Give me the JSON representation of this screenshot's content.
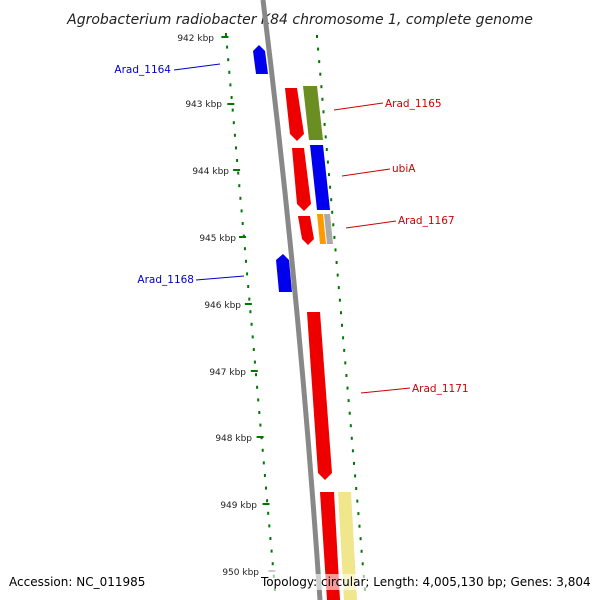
{
  "title": "Agrobacterium radiobacter K84 chromosome 1, complete genome",
  "footer": {
    "accession": "Accession: NC_011985",
    "summary": "Topology: circular; Length: 4,005,130 bp; Genes: 3,804"
  },
  "ruler": {
    "labels": [
      "942 kbp",
      "943 kbp",
      "944 kbp",
      "945 kbp",
      "946 kbp",
      "947 kbp",
      "948 kbp",
      "949 kbp",
      "950 kbp"
    ]
  },
  "gene_labels": [
    {
      "id": "arad-1164",
      "text": "Arad_1164",
      "color": "#0000cc"
    },
    {
      "id": "arad-1165",
      "text": "Arad_1165",
      "color": "#cc0000"
    },
    {
      "id": "ubia",
      "text": "ubiA",
      "color": "#cc0000"
    },
    {
      "id": "arad-1167",
      "text": "Arad_1167",
      "color": "#cc0000"
    },
    {
      "id": "arad-1168",
      "text": "Arad_1168",
      "color": "#0000cc"
    },
    {
      "id": "arad-1171",
      "text": "Arad_1171",
      "color": "#cc0000"
    }
  ],
  "colors": {
    "backbone": "#888888",
    "ruler_tick": "#007700",
    "forward_gene": "#ff0000",
    "reverse_gene": "#0000ff",
    "cds_olive": "#6b8e23",
    "cds_blue": "#0000ff",
    "cds_orange": "#ff9900",
    "cds_grey": "#aaaaaa",
    "cds_yellow": "#f0e68c"
  }
}
